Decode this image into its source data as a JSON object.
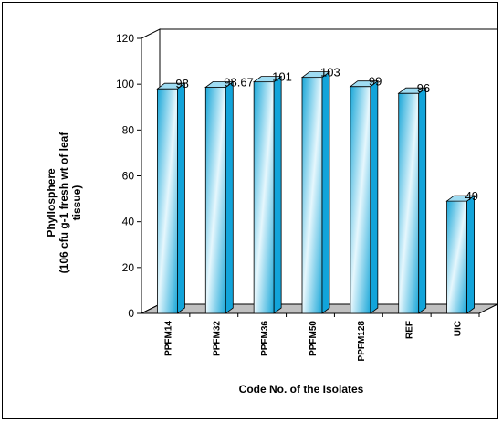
{
  "chart_data": {
    "type": "bar",
    "categories": [
      "PPFM14",
      "PPFM32",
      "PPFM36",
      "PPFM50",
      "PPFM128",
      "REF",
      "UIC"
    ],
    "values": [
      98,
      98.67,
      101,
      103,
      99,
      96,
      49
    ],
    "data_labels": [
      "98",
      "98.67",
      "101",
      "103",
      "99",
      "96",
      "49"
    ],
    "title": "",
    "xlabel": "Code No. of the Isolates",
    "ylabel_lines": [
      "Phyllosphere",
      "(106 cfu g-1 fresh wt of leaf",
      "tissue)"
    ],
    "ylim": [
      0,
      120
    ],
    "yticks": [
      0,
      20,
      40,
      60,
      80,
      100,
      120
    ],
    "grid": false,
    "legend": "none"
  },
  "colors": {
    "bar_dark": "#1aa7d8",
    "bar_light": "#e6f7fd",
    "bar_side": "#12a4da",
    "bar_top": "#9fdcf2",
    "floor": "#c0c0c0",
    "axis": "#000000"
  }
}
